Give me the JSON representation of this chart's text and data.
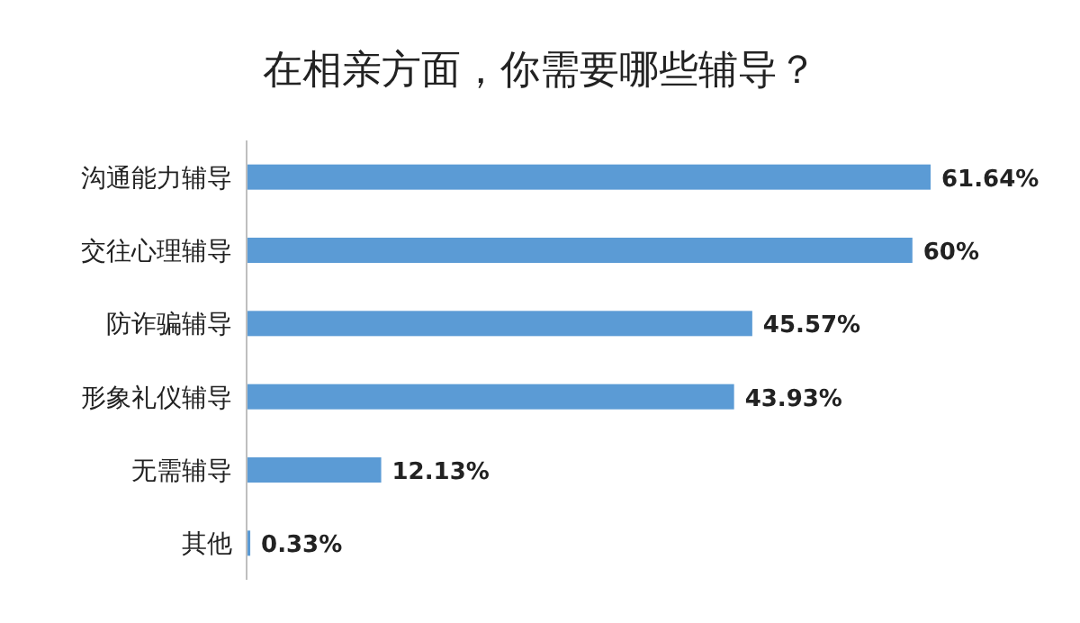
{
  "chart_data": {
    "type": "bar",
    "orientation": "horizontal",
    "title": "在相亲方面，你需要哪些辅导？",
    "categories": [
      "沟通能力辅导",
      "交往心理辅导",
      "防诈骗辅导",
      "形象礼仪辅导",
      "无需辅导",
      "其他"
    ],
    "values": [
      61.64,
      60,
      45.57,
      43.93,
      12.13,
      0.33
    ],
    "value_labels": [
      "61.64%",
      "60%",
      "45.57%",
      "43.93%",
      "12.13%",
      "0.33%"
    ],
    "color": "#5b9bd5"
  }
}
